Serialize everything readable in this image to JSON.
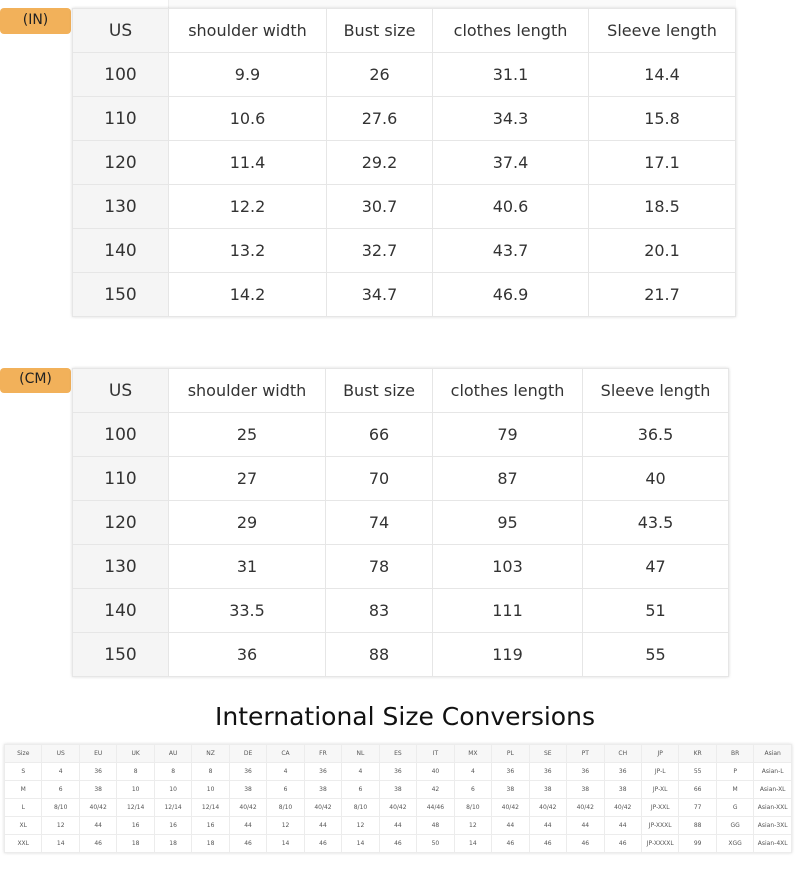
{
  "in_table": {
    "unit_label": "(IN)",
    "headers": [
      "US",
      "shoulder width",
      "Bust size",
      "clothes length",
      "Sleeve length"
    ],
    "rows": [
      [
        "100",
        "9.9",
        "26",
        "31.1",
        "14.4"
      ],
      [
        "110",
        "10.6",
        "27.6",
        "34.3",
        "15.8"
      ],
      [
        "120",
        "11.4",
        "29.2",
        "37.4",
        "17.1"
      ],
      [
        "130",
        "12.2",
        "30.7",
        "40.6",
        "18.5"
      ],
      [
        "140",
        "13.2",
        "32.7",
        "43.7",
        "20.1"
      ],
      [
        "150",
        "14.2",
        "34.7",
        "46.9",
        "21.7"
      ]
    ]
  },
  "cm_table": {
    "unit_label": "(CM)",
    "headers": [
      "US",
      "shoulder width",
      "Bust size",
      "clothes length",
      "Sleeve length"
    ],
    "rows": [
      [
        "100",
        "25",
        "66",
        "79",
        "36.5"
      ],
      [
        "110",
        "27",
        "70",
        "87",
        "40"
      ],
      [
        "120",
        "29",
        "74",
        "95",
        "43.5"
      ],
      [
        "130",
        "31",
        "78",
        "103",
        "47"
      ],
      [
        "140",
        "33.5",
        "83",
        "111",
        "51"
      ],
      [
        "150",
        "36",
        "88",
        "119",
        "55"
      ]
    ]
  },
  "intl": {
    "title": "International Size Conversions",
    "headers": [
      "Size",
      "US",
      "EU",
      "UK",
      "AU",
      "NZ",
      "DE",
      "CA",
      "FR",
      "NL",
      "ES",
      "IT",
      "MX",
      "PL",
      "SE",
      "PT",
      "CH",
      "JP",
      "KR",
      "BR",
      "Asian"
    ],
    "rows": [
      [
        "S",
        "4",
        "36",
        "8",
        "8",
        "8",
        "36",
        "4",
        "36",
        "4",
        "36",
        "40",
        "4",
        "36",
        "36",
        "36",
        "36",
        "JP-L",
        "55",
        "P",
        "Asian-L"
      ],
      [
        "M",
        "6",
        "38",
        "10",
        "10",
        "10",
        "38",
        "6",
        "38",
        "6",
        "38",
        "42",
        "6",
        "38",
        "38",
        "38",
        "38",
        "JP-XL",
        "66",
        "M",
        "Asian-XL"
      ],
      [
        "L",
        "8/10",
        "40/42",
        "12/14",
        "12/14",
        "12/14",
        "40/42",
        "8/10",
        "40/42",
        "8/10",
        "40/42",
        "44/46",
        "8/10",
        "40/42",
        "40/42",
        "40/42",
        "40/42",
        "JP-XXL",
        "77",
        "G",
        "Asian-XXL"
      ],
      [
        "XL",
        "12",
        "44",
        "16",
        "16",
        "16",
        "44",
        "12",
        "44",
        "12",
        "44",
        "48",
        "12",
        "44",
        "44",
        "44",
        "44",
        "JP-XXXL",
        "88",
        "GG",
        "Asian-3XL"
      ],
      [
        "XXL",
        "14",
        "46",
        "18",
        "18",
        "18",
        "46",
        "14",
        "46",
        "14",
        "46",
        "50",
        "14",
        "46",
        "46",
        "46",
        "46",
        "JP-XXXXL",
        "99",
        "XGG",
        "Asian-4XL"
      ]
    ]
  },
  "colors": {
    "badge": "#f2b15a"
  }
}
